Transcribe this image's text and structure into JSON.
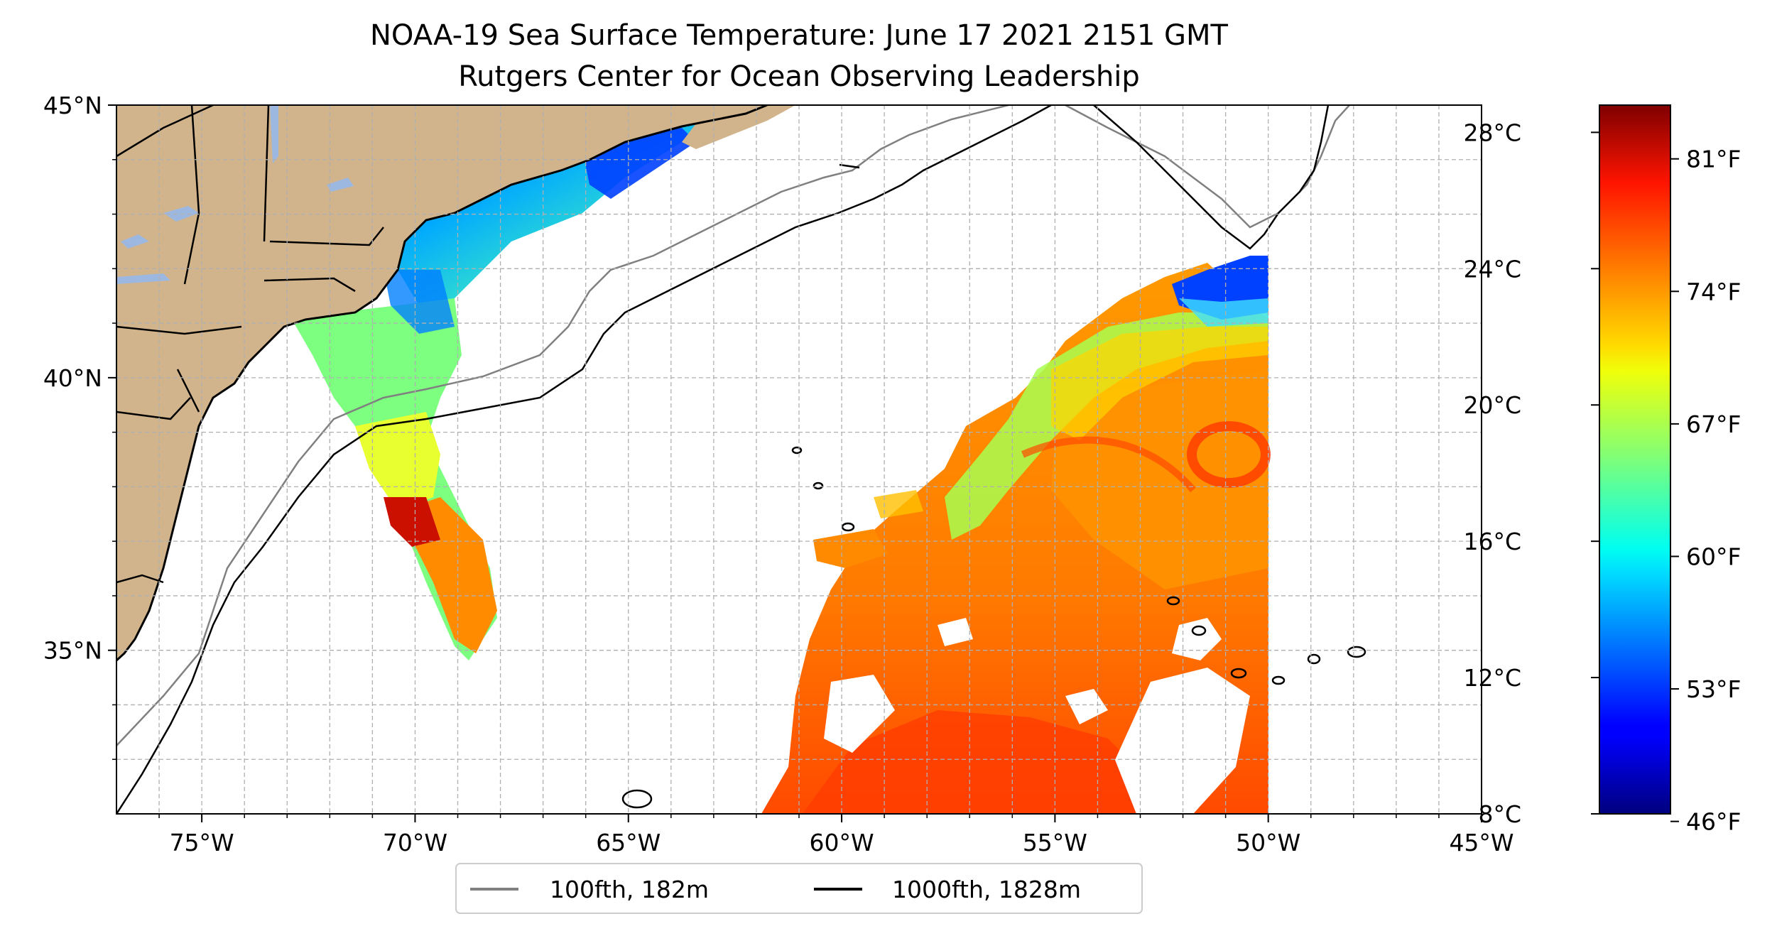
{
  "title": {
    "line1": "NOAA-19 Sea Surface Temperature: June 17 2021 2151 GMT",
    "line2": "Rutgers Center for Ocean Observing Leadership"
  },
  "map": {
    "lon_range": [
      -77,
      -45
    ],
    "lat_range": [
      32,
      45
    ],
    "lon_ticks": [
      {
        "value": -75,
        "label": "75°W"
      },
      {
        "value": -70,
        "label": "70°W"
      },
      {
        "value": -65,
        "label": "65°W"
      },
      {
        "value": -60,
        "label": "60°W"
      },
      {
        "value": -55,
        "label": "55°W"
      },
      {
        "value": -50,
        "label": "50°W"
      },
      {
        "value": -45,
        "label": "45°W"
      }
    ],
    "lat_ticks": [
      {
        "value": 35,
        "label": "35°N"
      },
      {
        "value": 40,
        "label": "40°N"
      },
      {
        "value": 45,
        "label": "45°N"
      }
    ],
    "gridlines": "dashed, every 1 degree",
    "land_color": "#D2B48C",
    "lake_color": "#9DB8E0"
  },
  "legend": {
    "placement": "bottom-center",
    "items": [
      {
        "label": "100fth, 182m",
        "color": "#808080"
      },
      {
        "label": "1000fth, 1828m",
        "color": "#000000"
      }
    ]
  },
  "colorbar": {
    "colormap": "jet",
    "range_c": [
      8,
      28.8
    ],
    "celsius_ticks": [
      {
        "value": 8,
        "label": "8°C"
      },
      {
        "value": 12,
        "label": "12°C"
      },
      {
        "value": 16,
        "label": "16°C"
      },
      {
        "value": 20,
        "label": "20°C"
      },
      {
        "value": 24,
        "label": "24°C"
      },
      {
        "value": 28,
        "label": "28°C"
      }
    ],
    "fahrenheit_ticks": [
      {
        "value": 46,
        "label": "46°F"
      },
      {
        "value": 53,
        "label": "53°F"
      },
      {
        "value": 60,
        "label": "60°F"
      },
      {
        "value": 67,
        "label": "67°F"
      },
      {
        "value": 74,
        "label": "74°F"
      },
      {
        "value": 81,
        "label": "81°F"
      }
    ]
  }
}
